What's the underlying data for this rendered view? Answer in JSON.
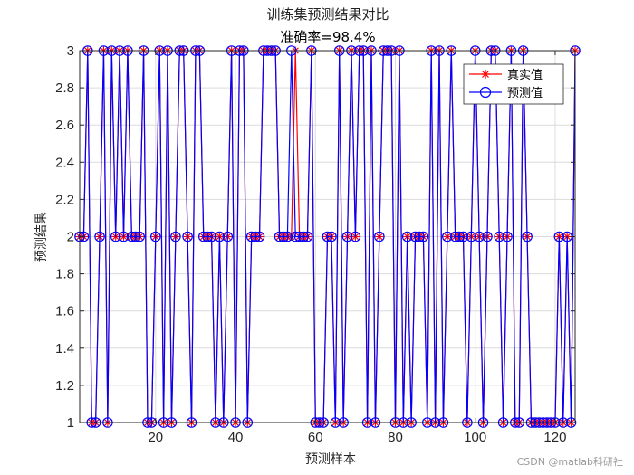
{
  "chart_data": {
    "type": "line",
    "title": "训练集预测结果对比",
    "subtitle": "准确率=98.4%",
    "xlabel": "预测样本",
    "ylabel": "预测结果",
    "xlim": [
      1,
      125
    ],
    "ylim": [
      1,
      3
    ],
    "xticks": [
      "20",
      "40",
      "60",
      "80",
      "100",
      "120"
    ],
    "yticks": [
      "1",
      "1.2",
      "1.4",
      "1.6",
      "1.8",
      "2",
      "2.2",
      "2.4",
      "2.6",
      "2.8",
      "3"
    ],
    "grid": true,
    "legend_position": "top-right",
    "series": [
      {
        "name": "真实值",
        "color": "#ff0000",
        "marker": "star",
        "values": [
          2,
          2,
          3,
          1,
          1,
          2,
          3,
          1,
          3,
          2,
          3,
          2,
          3,
          2,
          2,
          2,
          3,
          1,
          1,
          2,
          3,
          1,
          3,
          1,
          2,
          3,
          3,
          2,
          1,
          3,
          3,
          2,
          2,
          2,
          1,
          2,
          1,
          2,
          3,
          1,
          3,
          3,
          1,
          2,
          2,
          2,
          3,
          3,
          3,
          3,
          2,
          2,
          2,
          2,
          3,
          2,
          2,
          2,
          3,
          1,
          1,
          1,
          2,
          2,
          1,
          3,
          1,
          2,
          3,
          2,
          3,
          3,
          1,
          3,
          1,
          2,
          3,
          3,
          3,
          1,
          3,
          1,
          2,
          1,
          2,
          2,
          2,
          1,
          3,
          1,
          3,
          1,
          2,
          3,
          2,
          2,
          2,
          1,
          2,
          3,
          2,
          1,
          2,
          3,
          3,
          2,
          1,
          2,
          3,
          1,
          1,
          3,
          2,
          1,
          1,
          1,
          1,
          1,
          1,
          1,
          2,
          1,
          2,
          1,
          3
        ]
      },
      {
        "name": "预测值",
        "color": "#0000ff",
        "marker": "circle",
        "values": [
          2,
          2,
          3,
          1,
          1,
          2,
          3,
          1,
          3,
          2,
          3,
          2,
          3,
          2,
          2,
          2,
          3,
          1,
          1,
          2,
          3,
          1,
          3,
          1,
          2,
          3,
          3,
          2,
          1,
          3,
          3,
          2,
          2,
          2,
          1,
          2,
          1,
          2,
          3,
          1,
          3,
          3,
          1,
          2,
          2,
          2,
          3,
          3,
          3,
          3,
          2,
          2,
          2,
          3,
          2,
          2,
          2,
          2,
          3,
          1,
          1,
          1,
          2,
          2,
          1,
          3,
          1,
          2,
          3,
          2,
          3,
          3,
          1,
          3,
          1,
          2,
          3,
          3,
          3,
          1,
          3,
          1,
          2,
          1,
          2,
          2,
          2,
          1,
          3,
          1,
          3,
          1,
          2,
          3,
          2,
          2,
          2,
          1,
          2,
          3,
          2,
          1,
          2,
          3,
          3,
          2,
          1,
          2,
          3,
          1,
          1,
          3,
          2,
          1,
          1,
          1,
          1,
          1,
          1,
          1,
          2,
          1,
          2,
          1,
          3
        ]
      }
    ]
  },
  "watermark": "CSDN @matlab科研社"
}
